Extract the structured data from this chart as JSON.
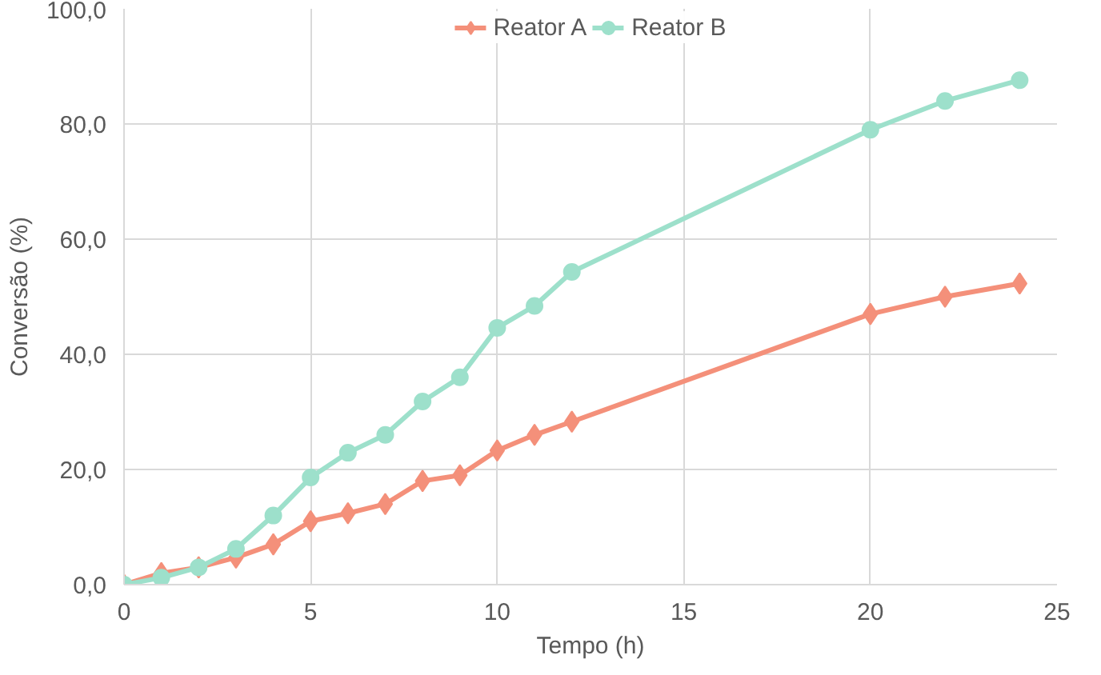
{
  "chart_data": {
    "type": "line",
    "xlabel": "Tempo (h)",
    "ylabel": "Conversão (%)",
    "x": [
      0,
      1,
      2,
      3,
      4,
      5,
      6,
      7,
      8,
      9,
      10,
      11,
      12,
      20,
      22,
      24
    ],
    "series": [
      {
        "name": "Reator A",
        "color": "#f4907a",
        "marker": "diamond",
        "values": [
          0,
          2,
          3,
          4.7,
          7,
          11,
          12.4,
          14,
          18,
          19,
          23.3,
          26,
          28.3,
          47,
          50,
          52.3
        ]
      },
      {
        "name": "Reator B",
        "color": "#9de0cb",
        "marker": "circle",
        "values": [
          0,
          1.2,
          3,
          6.2,
          12,
          18.6,
          22.9,
          26,
          31.8,
          36,
          44.6,
          48.4,
          54.3,
          79,
          84,
          87.6
        ]
      }
    ],
    "xlim": [
      0,
      25
    ],
    "xticks": [
      0,
      5,
      10,
      15,
      20,
      25
    ],
    "ylim": [
      0,
      100
    ],
    "yticks": [
      {
        "value": 0,
        "label": "0,0"
      },
      {
        "value": 20,
        "label": "20,0"
      },
      {
        "value": 40,
        "label": "40,0"
      },
      {
        "value": 60,
        "label": "60,0"
      },
      {
        "value": 80,
        "label": "80,0"
      },
      {
        "value": 100,
        "label": "100,0"
      }
    ],
    "grid": true,
    "legend": "top",
    "line_style": "solid"
  }
}
